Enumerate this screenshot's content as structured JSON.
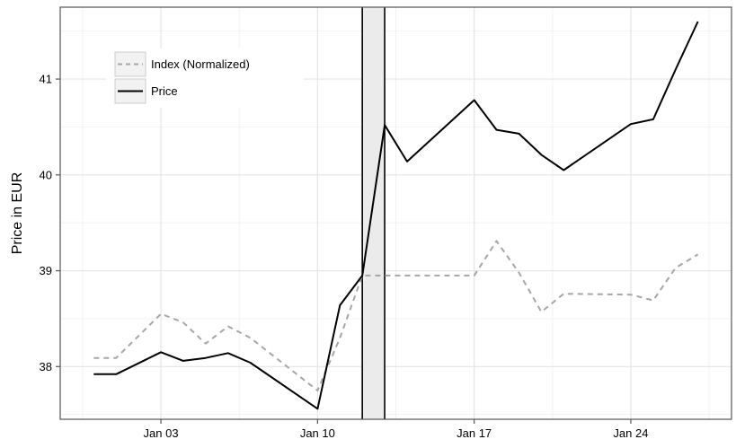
{
  "chart_data": {
    "type": "line",
    "title": "",
    "xlabel": "",
    "ylabel": "Price in EUR",
    "x_ticks": [
      "Jan 03",
      "Jan 10",
      "Jan 17",
      "Jan 24"
    ],
    "y_ticks": [
      "38",
      "39",
      "40",
      "41"
    ],
    "ylim": [
      37.45,
      41.75
    ],
    "xlim": [
      "2014-12-29T12:00",
      "2015-01-28T12:00"
    ],
    "grid": true,
    "legend_position": "top-left",
    "highlight_band": {
      "start": "2015-01-12",
      "end": "2015-01-13"
    },
    "series": [
      {
        "name": "Index (Normalized)",
        "style": "dashed",
        "color": "#a6a6a6",
        "points": [
          {
            "x": "2014-12-31",
            "y": 38.09
          },
          {
            "x": "2015-01-01",
            "y": 38.09
          },
          {
            "x": "2015-01-03",
            "y": 38.55
          },
          {
            "x": "2015-01-04",
            "y": 38.46
          },
          {
            "x": "2015-01-05",
            "y": 38.24
          },
          {
            "x": "2015-01-06",
            "y": 38.42
          },
          {
            "x": "2015-01-07",
            "y": 38.3
          },
          {
            "x": "2015-01-10",
            "y": 37.75
          },
          {
            "x": "2015-01-11",
            "y": 38.3
          },
          {
            "x": "2015-01-12",
            "y": 38.95
          },
          {
            "x": "2015-01-13",
            "y": 38.95
          },
          {
            "x": "2015-01-14",
            "y": 38.95
          },
          {
            "x": "2015-01-17",
            "y": 38.95
          },
          {
            "x": "2015-01-18",
            "y": 39.31
          },
          {
            "x": "2015-01-19",
            "y": 38.98
          },
          {
            "x": "2015-01-20",
            "y": 38.57
          },
          {
            "x": "2015-01-21",
            "y": 38.76
          },
          {
            "x": "2015-01-24",
            "y": 38.75
          },
          {
            "x": "2015-01-25",
            "y": 38.69
          },
          {
            "x": "2015-01-26",
            "y": 39.03
          },
          {
            "x": "2015-01-27",
            "y": 39.17
          }
        ]
      },
      {
        "name": "Price",
        "style": "solid",
        "color": "#000000",
        "points": [
          {
            "x": "2014-12-31",
            "y": 37.92
          },
          {
            "x": "2015-01-01",
            "y": 37.92
          },
          {
            "x": "2015-01-03",
            "y": 38.15
          },
          {
            "x": "2015-01-04",
            "y": 38.06
          },
          {
            "x": "2015-01-05",
            "y": 38.09
          },
          {
            "x": "2015-01-06",
            "y": 38.14
          },
          {
            "x": "2015-01-07",
            "y": 38.04
          },
          {
            "x": "2015-01-10",
            "y": 37.56
          },
          {
            "x": "2015-01-11",
            "y": 38.64
          },
          {
            "x": "2015-01-12",
            "y": 38.95
          },
          {
            "x": "2015-01-13",
            "y": 40.52
          },
          {
            "x": "2015-01-14",
            "y": 40.14
          },
          {
            "x": "2015-01-17",
            "y": 40.78
          },
          {
            "x": "2015-01-18",
            "y": 40.47
          },
          {
            "x": "2015-01-19",
            "y": 40.43
          },
          {
            "x": "2015-01-20",
            "y": 40.21
          },
          {
            "x": "2015-01-21",
            "y": 40.05
          },
          {
            "x": "2015-01-24",
            "y": 40.53
          },
          {
            "x": "2015-01-25",
            "y": 40.58
          },
          {
            "x": "2015-01-26",
            "y": 41.1
          },
          {
            "x": "2015-01-27",
            "y": 41.6
          }
        ]
      }
    ]
  }
}
